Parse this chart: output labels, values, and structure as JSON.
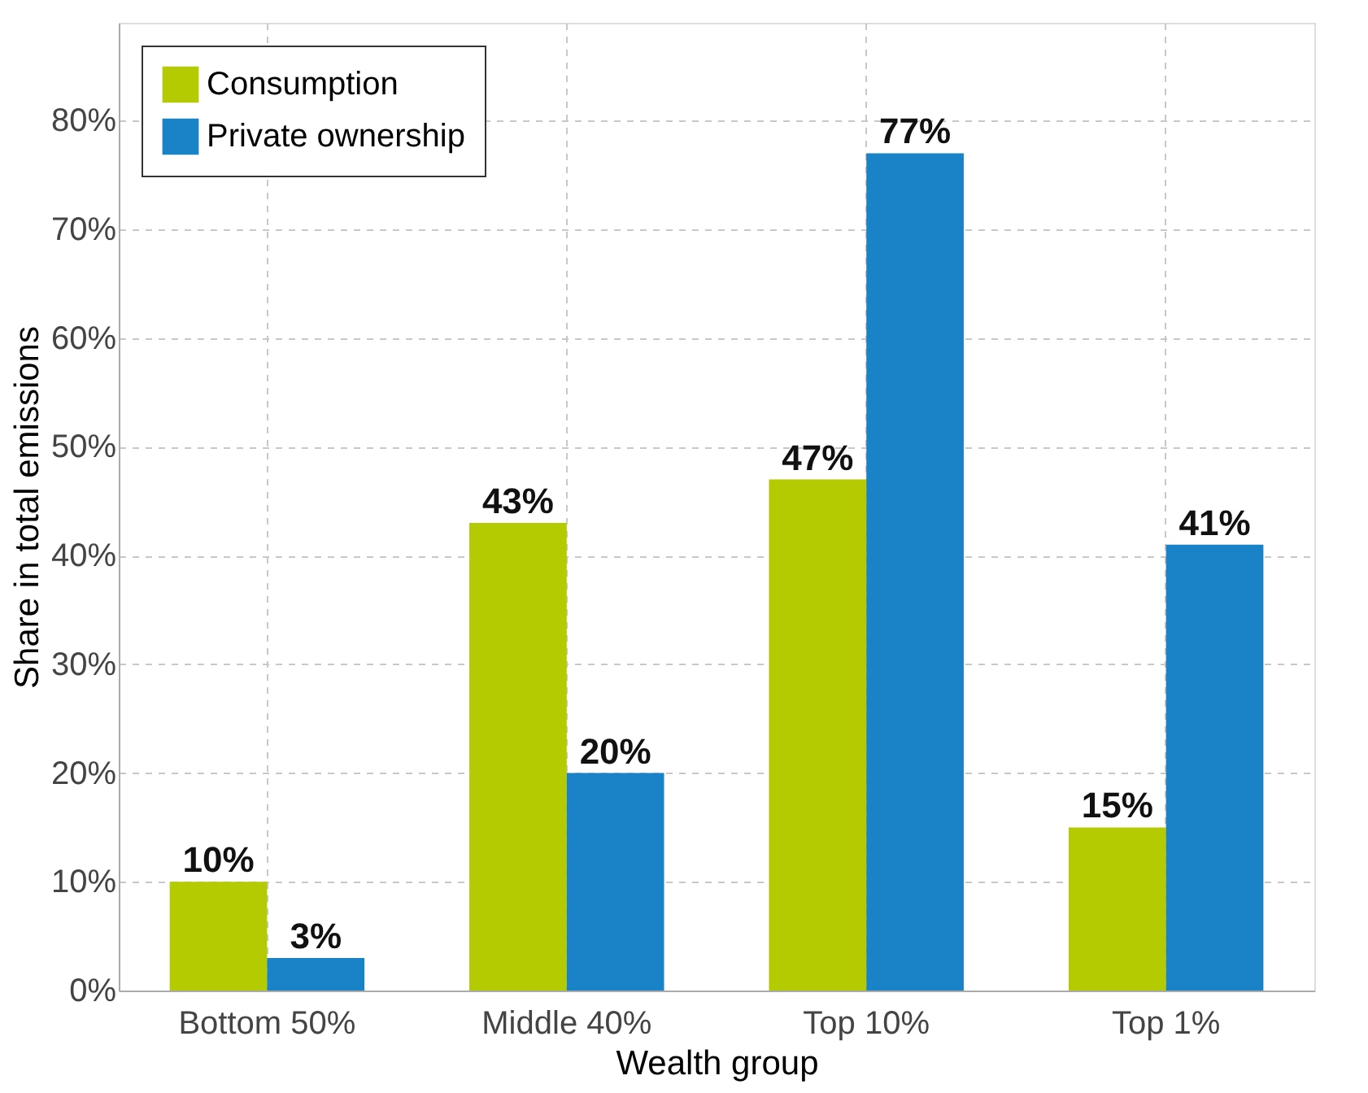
{
  "chart_data": {
    "type": "bar",
    "xlabel": "Wealth group",
    "ylabel": "Share in total emissions",
    "categories": [
      "Bottom 50%",
      "Middle 40%",
      "Top 10%",
      "Top 1%"
    ],
    "series": [
      {
        "name": "Consumption",
        "color": "#b3cb00",
        "values": [
          10,
          43,
          47,
          15
        ],
        "value_labels": [
          "10%",
          "43%",
          "47%",
          "15%"
        ]
      },
      {
        "name": "Private ownership",
        "color": "#1a82c6",
        "values": [
          3,
          20,
          77,
          41
        ],
        "value_labels": [
          "3%",
          "20%",
          "77%",
          "41%"
        ]
      }
    ],
    "ylim": [
      0,
      89
    ],
    "yticks": [
      {
        "value": 0,
        "label": "0%"
      },
      {
        "value": 10,
        "label": "10%"
      },
      {
        "value": 20,
        "label": "20%"
      },
      {
        "value": 30,
        "label": "30%"
      },
      {
        "value": 40,
        "label": "40%"
      },
      {
        "value": 50,
        "label": "50%"
      },
      {
        "value": 60,
        "label": "60%"
      },
      {
        "value": 70,
        "label": "70%"
      },
      {
        "value": 80,
        "label": "80%"
      }
    ],
    "grid": true,
    "legend": "top left"
  }
}
